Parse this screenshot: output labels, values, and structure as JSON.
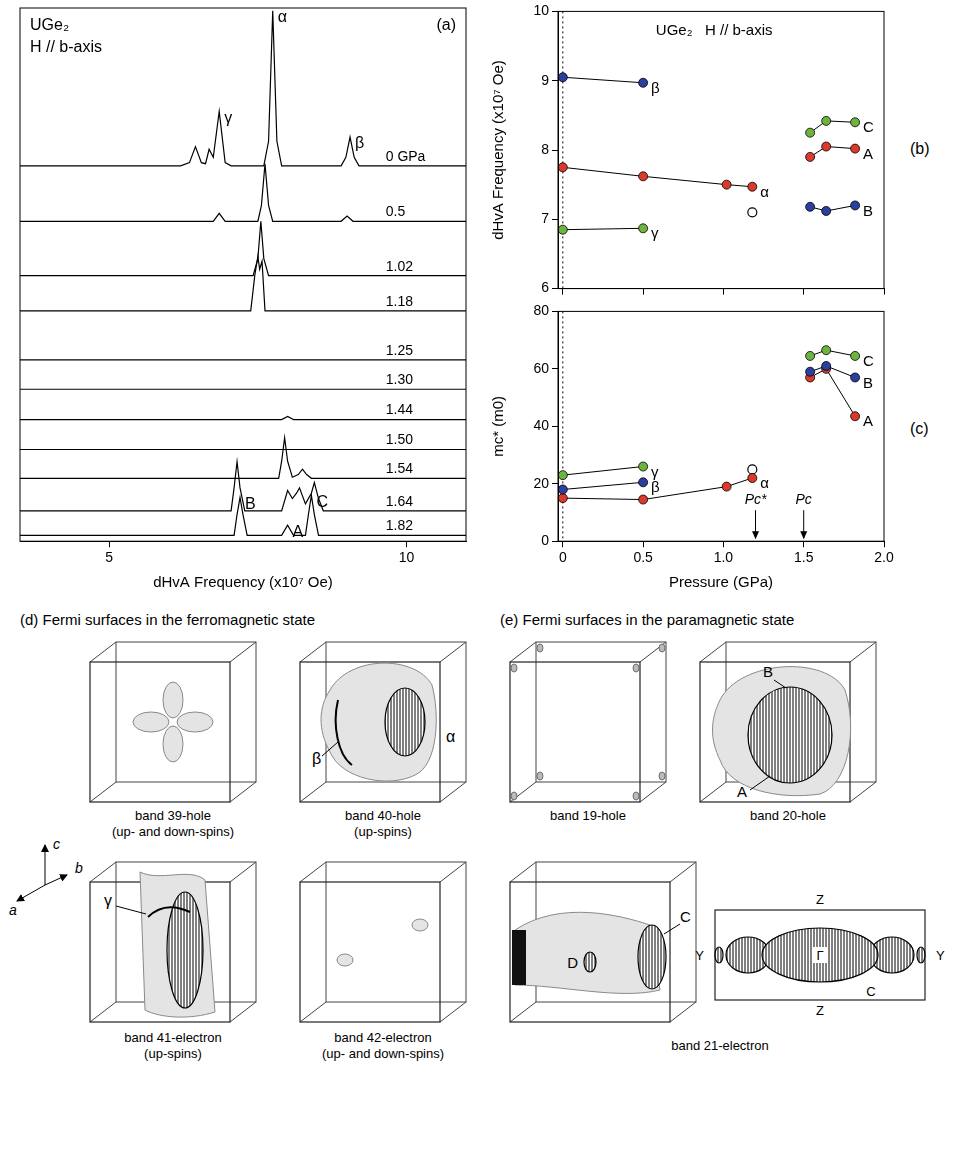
{
  "chart_data": [
    {
      "type": "line",
      "panel": "(a)",
      "title_lines": [
        "UGe₂",
        "H // b-axis"
      ],
      "x_label": "dHvA Frequency (x10⁷ Oe)",
      "xlim": [
        3.5,
        11
      ],
      "xticks": [
        5,
        10
      ],
      "ylim": [
        0,
        100
      ],
      "tick_labels": "x",
      "grid": false,
      "series": [
        {
          "name": "0 GPa",
          "color": "#000000",
          "x": [
            3.5,
            6.2,
            6.35,
            6.45,
            6.55,
            6.62,
            6.68,
            6.75,
            6.85,
            6.95,
            7.05,
            7.6,
            7.68,
            7.75,
            7.82,
            7.9,
            8.9,
            8.98,
            9.05,
            9.12,
            9.2,
            11
          ],
          "values": [
            70.4,
            70.4,
            71,
            74,
            71,
            70.8,
            73.5,
            72,
            80.6,
            71,
            70.4,
            70.4,
            75,
            99.5,
            75,
            70.4,
            70.4,
            72,
            75.8,
            72,
            70.4,
            70.4
          ],
          "peak_labels": [
            {
              "text": "γ",
              "x": 6.85
            },
            {
              "text": "α",
              "x": 7.75
            },
            {
              "text": "β",
              "x": 9.05
            }
          ]
        },
        {
          "name": "0.5",
          "color": "#000000",
          "x": [
            3.5,
            6.75,
            6.85,
            6.95,
            7.5,
            7.56,
            7.62,
            7.68,
            7.75,
            8.9,
            9.0,
            9.1,
            11
          ],
          "values": [
            60,
            60,
            61.5,
            60,
            60,
            63,
            70.8,
            63,
            60,
            60,
            61,
            60,
            60
          ]
        },
        {
          "name": "1.02",
          "color": "#000000",
          "x": [
            3.5,
            7.42,
            7.5,
            7.55,
            7.6,
            7.68,
            11
          ],
          "values": [
            49.8,
            49.8,
            53,
            60,
            53,
            49.8,
            49.8
          ]
        },
        {
          "name": "1.18",
          "color": "#000000",
          "x": [
            3.5,
            7.38,
            7.45,
            7.5,
            7.53,
            7.57,
            7.62,
            11
          ],
          "values": [
            43.2,
            43.2,
            50,
            53.4,
            51,
            52.5,
            43.2,
            43.2
          ]
        },
        {
          "name": "1.25",
          "color": "#000000",
          "x": [
            3.5,
            7.5,
            11
          ],
          "values": [
            34,
            34,
            34
          ]
        },
        {
          "name": "1.30",
          "color": "#000000",
          "x": [
            3.5,
            7.5,
            11
          ],
          "values": [
            28.5,
            28.5,
            28.5
          ]
        },
        {
          "name": "1.44",
          "color": "#000000",
          "x": [
            3.5,
            7.9,
            8.0,
            8.1,
            11
          ],
          "values": [
            22.8,
            22.8,
            23.4,
            22.8,
            22.8
          ]
        },
        {
          "name": "1.50",
          "color": "#000000",
          "x": [
            3.5,
            7.5,
            11
          ],
          "values": [
            17.2,
            17.2,
            17.2
          ]
        },
        {
          "name": "1.54",
          "color": "#000000",
          "x": [
            3.5,
            7.85,
            7.9,
            7.95,
            8.0,
            8.08,
            8.18,
            8.25,
            8.32,
            8.4,
            11
          ],
          "values": [
            11.8,
            11.8,
            15,
            19.4,
            15,
            12,
            12.5,
            13.5,
            12.5,
            11.8,
            11.8
          ]
        },
        {
          "name": "1.64",
          "color": "#000000",
          "x": [
            3.5,
            7.05,
            7.1,
            7.15,
            7.2,
            7.28,
            7.9,
            8.0,
            8.08,
            8.15,
            8.2,
            8.3,
            8.4,
            8.45,
            8.52,
            8.6,
            11
          ],
          "values": [
            5.7,
            5.7,
            10,
            14.9,
            10,
            5.7,
            5.7,
            9.5,
            8,
            9,
            10,
            7,
            9,
            11,
            8,
            5.7,
            5.7
          ]
        },
        {
          "name": "1.82",
          "color": "#000000",
          "x": [
            3.5,
            7.1,
            7.15,
            7.2,
            7.25,
            7.32,
            7.9,
            8.0,
            8.1,
            8.3,
            8.35,
            8.4,
            8.45,
            8.52,
            11
          ],
          "values": [
            1.1,
            1.1,
            5,
            8.2,
            5,
            1.1,
            1.1,
            3,
            1.1,
            1.1,
            5,
            8.6,
            5,
            1.1,
            1.1
          ],
          "peak_labels": [
            {
              "text": "B",
              "x": 7.2
            },
            {
              "text": "A",
              "x": 8.0
            },
            {
              "text": "C",
              "x": 8.4
            }
          ]
        }
      ]
    },
    {
      "type": "line",
      "panel": "(b)",
      "title_lines": [
        "UGe₂",
        "H // b-axis"
      ],
      "y_label": "dHvA Frequency (x10⁷ Oe)",
      "xlim": [
        -0.03,
        2.0
      ],
      "xticks": [
        0,
        0.5,
        {
          "value": 1,
          "label": "1.0"
        },
        1.5,
        {
          "value": 2,
          "label": "2.0"
        }
      ],
      "ylim": [
        6,
        10
      ],
      "yticks": [
        6,
        7,
        8,
        9,
        10
      ],
      "tick_labels": "y",
      "grid": false,
      "vlines": [
        0
      ],
      "series": [
        {
          "name": "β",
          "color": "#2b3f9e",
          "marker": "filled",
          "x": [
            0,
            0.5
          ],
          "values": [
            9.05,
            8.97
          ]
        },
        {
          "name": "α",
          "color": "#d93a2b",
          "marker": "filled",
          "x": [
            0,
            0.5,
            1.02,
            1.18
          ],
          "values": [
            7.75,
            7.62,
            7.5,
            7.47
          ]
        },
        {
          "color": "#ffffff",
          "marker": "open",
          "line_style": "none",
          "x": [
            1.18
          ],
          "values": [
            7.1
          ]
        },
        {
          "name": "γ",
          "color": "#6cb33f",
          "marker": "filled",
          "x": [
            0,
            0.5
          ],
          "values": [
            6.85,
            6.87
          ]
        },
        {
          "name": "C",
          "color": "#6cb33f",
          "marker": "filled",
          "x": [
            1.54,
            1.64,
            1.82
          ],
          "values": [
            8.25,
            8.42,
            8.4
          ]
        },
        {
          "name": "A",
          "color": "#d93a2b",
          "marker": "filled",
          "x": [
            1.54,
            1.64,
            1.82
          ],
          "values": [
            7.9,
            8.05,
            8.02
          ]
        },
        {
          "name": "B",
          "color": "#2b3f9e",
          "marker": "filled",
          "x": [
            1.54,
            1.64,
            1.82
          ],
          "values": [
            7.18,
            7.12,
            7.2
          ]
        }
      ]
    },
    {
      "type": "line",
      "panel": "(c)",
      "x_label": "Pressure (GPa)",
      "y_label": "mc* (m0)",
      "xlim": [
        -0.03,
        2.0
      ],
      "xticks": [
        0,
        0.5,
        {
          "value": 1,
          "label": "1.0"
        },
        1.5,
        {
          "value": 2,
          "label": "2.0"
        }
      ],
      "ylim": [
        0,
        80
      ],
      "yticks": [
        0,
        20,
        40,
        60,
        80
      ],
      "tick_labels": true,
      "grid": false,
      "vlines": [
        0
      ],
      "annotations": [
        {
          "text": "Pc*",
          "x": 1.2
        },
        {
          "text": "Pc",
          "x": 1.5
        }
      ],
      "series": [
        {
          "name": "γ",
          "color": "#6cb33f",
          "marker": "filled",
          "x": [
            0,
            0.5
          ],
          "values": [
            23,
            26
          ]
        },
        {
          "name": "β",
          "color": "#2b3f9e",
          "marker": "filled",
          "x": [
            0,
            0.5
          ],
          "values": [
            18,
            20.5
          ]
        },
        {
          "name": "α",
          "color": "#d93a2b",
          "marker": "filled",
          "x": [
            0,
            0.5,
            1.02,
            1.18
          ],
          "values": [
            15,
            14.5,
            19,
            22
          ]
        },
        {
          "color": "#ffffff",
          "marker": "open",
          "line_style": "none",
          "x": [
            1.18
          ],
          "values": [
            25
          ]
        },
        {
          "name": "C",
          "color": "#6cb33f",
          "marker": "filled",
          "x": [
            1.54,
            1.64,
            1.82
          ],
          "values": [
            64.5,
            66.5,
            64.5
          ]
        },
        {
          "name": "B",
          "color": "#2b3f9e",
          "marker": "filled",
          "x": [
            1.54,
            1.64,
            1.82
          ],
          "values": [
            59,
            61,
            57
          ]
        },
        {
          "name": "A",
          "color": "#d93a2b",
          "marker": "filled",
          "x": [
            1.54,
            1.64,
            1.82
          ],
          "values": [
            57,
            60,
            43.5
          ]
        }
      ]
    }
  ],
  "fermi_surfaces": {
    "ferromagnetic": {
      "title": "(d) Fermi surfaces in the ferromagnetic state",
      "axes": [
        "a",
        "b",
        "c"
      ],
      "bands": [
        {
          "name": "band 39-hole",
          "spin": "(up- and down-spins)",
          "orbits": []
        },
        {
          "name": "band 40-hole",
          "spin": "(up-spins)",
          "orbits": [
            "β",
            "α"
          ]
        },
        {
          "name": "band 41-electron",
          "spin": "(up-spins)",
          "orbits": [
            "γ"
          ]
        },
        {
          "name": "band 42-electron",
          "spin": "(up- and down-spins)",
          "orbits": []
        }
      ]
    },
    "paramagnetic": {
      "title": "(e) Fermi surfaces in the paramagnetic state",
      "bands": [
        {
          "name": "band 19-hole",
          "orbits": []
        },
        {
          "name": "band 20-hole",
          "orbits": [
            "B",
            "A"
          ]
        },
        {
          "name": "band 21-electron",
          "orbits": [
            "C",
            "D"
          ]
        }
      ],
      "cross_section": {
        "top": "Z",
        "bottom": "Z",
        "left": "Y",
        "right": "Y",
        "center": "Γ",
        "orbit": "C"
      }
    }
  }
}
